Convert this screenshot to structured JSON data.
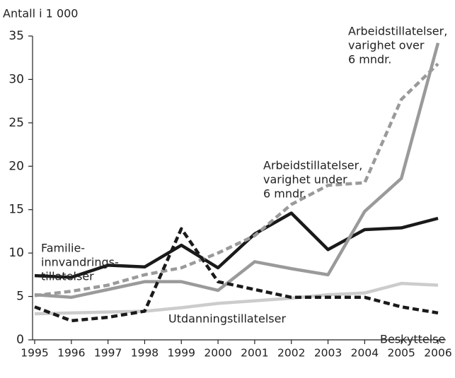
{
  "chart_data": {
    "type": "line",
    "y_axis_label": "Antall i 1 000",
    "x": [
      "1995",
      "1996",
      "1997",
      "1998",
      "1999",
      "2000",
      "2001",
      "2002",
      "2003",
      "2004",
      "2005",
      "2006"
    ],
    "ylim": [
      0,
      35
    ],
    "yticks": [
      0,
      5,
      10,
      15,
      20,
      25,
      30,
      35
    ],
    "series": [
      {
        "name": [
          "Familie-",
          "innvandrings-",
          "tillatelser"
        ],
        "color": "#1a1a1a",
        "dashed": false,
        "values": [
          7.4,
          7.2,
          8.6,
          8.4,
          10.9,
          8.3,
          12.2,
          14.6,
          10.4,
          12.7,
          12.9,
          14.0
        ]
      },
      {
        "name": [
          "Arbeidstillatelser,",
          "varighet over",
          "6 mndr."
        ],
        "color": "#9a9a9a",
        "dashed": false,
        "values": [
          5.2,
          4.9,
          5.8,
          6.7,
          6.7,
          5.7,
          9.0,
          8.2,
          7.5,
          14.8,
          18.6,
          34.2
        ]
      },
      {
        "name": [
          "Arbeidstillatelser,",
          "varighet under",
          "6 mndr."
        ],
        "color": "#9a9a9a",
        "dashed": true,
        "values": [
          5.1,
          5.6,
          6.3,
          7.5,
          8.3,
          10.0,
          12.0,
          15.6,
          17.8,
          18.1,
          27.7,
          31.8
        ]
      },
      {
        "name": [
          "Utdanningstillatelser"
        ],
        "color": "#cccccc",
        "dashed": false,
        "values": [
          3.0,
          3.1,
          3.2,
          3.3,
          3.7,
          4.2,
          4.5,
          4.8,
          5.2,
          5.4,
          6.5,
          6.3
        ]
      },
      {
        "name": [
          "Beskyttelse"
        ],
        "color": "#1a1a1a",
        "dashed": true,
        "values": [
          3.8,
          2.2,
          2.6,
          3.3,
          12.8,
          6.7,
          5.8,
          4.9,
          4.9,
          4.9,
          3.8,
          3.1
        ]
      }
    ]
  }
}
